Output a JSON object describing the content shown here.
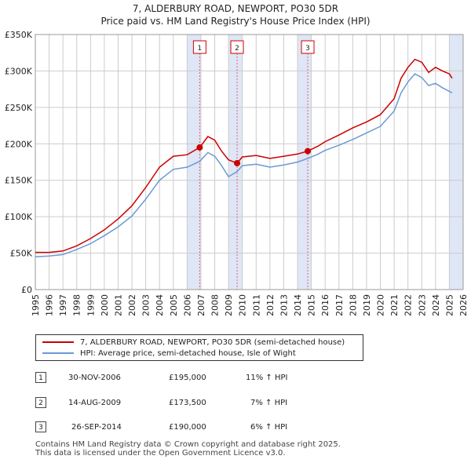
{
  "title": {
    "line1": "7, ALDERBURY ROAD, NEWPORT, PO30 5DR",
    "line2": "Price paid vs. HM Land Registry's House Price Index (HPI)"
  },
  "legend": {
    "property": "7, ALDERBURY ROAD, NEWPORT, PO30 5DR (semi-detached house)",
    "hpi": "HPI: Average price, semi-detached house, Isle of Wight"
  },
  "sales": [
    {
      "num": "1",
      "date": "30-NOV-2006",
      "price": "£195,000",
      "delta": "11% ↑ HPI"
    },
    {
      "num": "2",
      "date": "14-AUG-2009",
      "price": "£173,500",
      "delta": "7% ↑ HPI"
    },
    {
      "num": "3",
      "date": "26-SEP-2014",
      "price": "£190,000",
      "delta": "6% ↑ HPI"
    }
  ],
  "footer": {
    "line1": "Contains HM Land Registry data © Crown copyright and database right 2025.",
    "line2": "This data is licensed under the Open Government Licence v3.0."
  },
  "colors": {
    "property": "#cc0000",
    "hpi": "#6a9ad4",
    "shade": "#dfe6f5",
    "grid": "#cccccc",
    "marker_line": "#e06080"
  },
  "chart_data": {
    "type": "line",
    "title": "Price paid vs. HM Land Registry's House Price Index (HPI)",
    "xlabel": "",
    "ylabel": "",
    "xlim": [
      1995.0,
      2026.0
    ],
    "ylim": [
      0,
      350000
    ],
    "y_ticks": [
      {
        "value": 0,
        "label": "£0"
      },
      {
        "value": 50000,
        "label": "£50K"
      },
      {
        "value": 100000,
        "label": "£100K"
      },
      {
        "value": 150000,
        "label": "£150K"
      },
      {
        "value": 200000,
        "label": "£200K"
      },
      {
        "value": 250000,
        "label": "£250K"
      },
      {
        "value": 300000,
        "label": "£300K"
      },
      {
        "value": 350000,
        "label": "£350K"
      }
    ],
    "x_ticks": [
      "1995",
      "1996",
      "1997",
      "1998",
      "1999",
      "2000",
      "2001",
      "2002",
      "2003",
      "2004",
      "2005",
      "2006",
      "2007",
      "2008",
      "2009",
      "2010",
      "2011",
      "2012",
      "2013",
      "2014",
      "2015",
      "2016",
      "2017",
      "2018",
      "2019",
      "2020",
      "2021",
      "2022",
      "2023",
      "2024",
      "2025",
      "2026"
    ],
    "shaded_periods": [
      [
        2006.0,
        2007.0
      ],
      [
        2009.0,
        2010.0
      ],
      [
        2014.0,
        2015.0
      ],
      [
        2025.0,
        2026.0
      ]
    ],
    "sale_markers": [
      {
        "label": "1",
        "x": 2006.91,
        "y": 195000
      },
      {
        "label": "2",
        "x": 2009.62,
        "y": 173500
      },
      {
        "label": "3",
        "x": 2014.74,
        "y": 190000
      }
    ],
    "series": [
      {
        "name": "7, ALDERBURY ROAD, NEWPORT, PO30 5DR (semi-detached house)",
        "points": [
          [
            1995.0,
            51000
          ],
          [
            1996.0,
            51000
          ],
          [
            1997.0,
            53000
          ],
          [
            1998.0,
            60000
          ],
          [
            1999.0,
            70000
          ],
          [
            2000.0,
            82000
          ],
          [
            2001.0,
            97000
          ],
          [
            2002.0,
            115000
          ],
          [
            2003.0,
            140000
          ],
          [
            2004.0,
            168000
          ],
          [
            2005.0,
            183000
          ],
          [
            2006.0,
            185000
          ],
          [
            2006.91,
            195000
          ],
          [
            2007.5,
            210000
          ],
          [
            2008.0,
            205000
          ],
          [
            2008.5,
            190000
          ],
          [
            2009.0,
            178000
          ],
          [
            2009.62,
            173500
          ],
          [
            2010.0,
            182000
          ],
          [
            2011.0,
            184000
          ],
          [
            2012.0,
            180000
          ],
          [
            2013.0,
            183000
          ],
          [
            2014.0,
            186000
          ],
          [
            2014.74,
            190000
          ],
          [
            2015.5,
            197000
          ],
          [
            2016.0,
            203000
          ],
          [
            2017.0,
            212000
          ],
          [
            2018.0,
            222000
          ],
          [
            2019.0,
            230000
          ],
          [
            2020.0,
            240000
          ],
          [
            2021.0,
            262000
          ],
          [
            2021.5,
            290000
          ],
          [
            2022.0,
            305000
          ],
          [
            2022.5,
            316000
          ],
          [
            2023.0,
            312000
          ],
          [
            2023.5,
            298000
          ],
          [
            2024.0,
            305000
          ],
          [
            2024.5,
            300000
          ],
          [
            2025.0,
            296000
          ],
          [
            2025.2,
            290000
          ]
        ]
      },
      {
        "name": "HPI: Average price, semi-detached house, Isle of Wight",
        "points": [
          [
            1995.0,
            45000
          ],
          [
            1996.0,
            46000
          ],
          [
            1997.0,
            48000
          ],
          [
            1998.0,
            55000
          ],
          [
            1999.0,
            63000
          ],
          [
            2000.0,
            74000
          ],
          [
            2001.0,
            86000
          ],
          [
            2002.0,
            101000
          ],
          [
            2003.0,
            124000
          ],
          [
            2004.0,
            150000
          ],
          [
            2005.0,
            165000
          ],
          [
            2006.0,
            168000
          ],
          [
            2006.91,
            176000
          ],
          [
            2007.5,
            188000
          ],
          [
            2008.0,
            183000
          ],
          [
            2008.5,
            170000
          ],
          [
            2009.0,
            155000
          ],
          [
            2009.62,
            162000
          ],
          [
            2010.0,
            170000
          ],
          [
            2011.0,
            172000
          ],
          [
            2012.0,
            168000
          ],
          [
            2013.0,
            171000
          ],
          [
            2014.0,
            175000
          ],
          [
            2014.74,
            180000
          ],
          [
            2015.5,
            186000
          ],
          [
            2016.0,
            191000
          ],
          [
            2017.0,
            198000
          ],
          [
            2018.0,
            206000
          ],
          [
            2019.0,
            215000
          ],
          [
            2020.0,
            224000
          ],
          [
            2021.0,
            245000
          ],
          [
            2021.5,
            270000
          ],
          [
            2022.0,
            285000
          ],
          [
            2022.5,
            296000
          ],
          [
            2023.0,
            291000
          ],
          [
            2023.5,
            280000
          ],
          [
            2024.0,
            283000
          ],
          [
            2024.5,
            277000
          ],
          [
            2025.0,
            272000
          ],
          [
            2025.2,
            270000
          ]
        ]
      }
    ]
  }
}
